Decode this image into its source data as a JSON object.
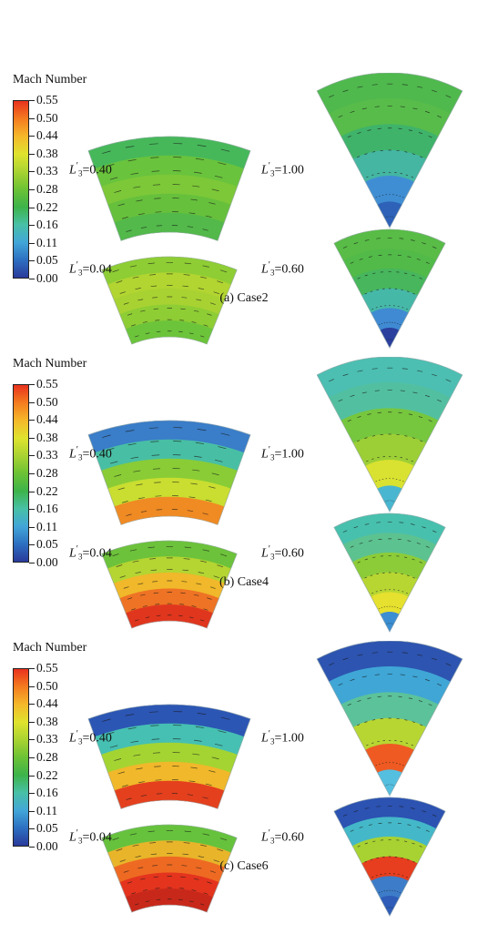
{
  "colorbar": {
    "title": "Mach Number",
    "ticks": [
      "0.55",
      "0.50",
      "0.44",
      "0.38",
      "0.33",
      "0.28",
      "0.22",
      "0.16",
      "0.11",
      "0.05",
      "0.00"
    ],
    "colors": [
      "#e8321e",
      "#f47c1f",
      "#f5b82a",
      "#dfe32e",
      "#a9d332",
      "#6cc235",
      "#3db34a",
      "#48c0a6",
      "#42a6d8",
      "#2d6fc1",
      "#2a3a9a"
    ]
  },
  "length_symbol": "L",
  "length_sub": "3",
  "length_sup": "′",
  "panels": [
    {
      "caption": "(a) Case2",
      "labels": [
        "=0.40",
        "=1.00",
        "=0.04",
        "=0.60"
      ],
      "fields": {
        "arc1": [
          "#46b85a",
          "#69c33c",
          "#7cc838",
          "#66c03c",
          "#52b94a"
        ],
        "arc2": [
          "#8ecd34",
          "#b2d531",
          "#a8d232",
          "#8ecd34",
          "#6cc43a"
        ],
        "sec1": [
          "#4fb94d",
          "#58bc4a",
          "#3fb36a",
          "#44b6a2",
          "#3f8ed4",
          "#2d62b8"
        ],
        "sec2": [
          "#58bc46",
          "#52ba48",
          "#47b65c",
          "#46b8a8",
          "#3f8ad2",
          "#2a3f9e"
        ]
      }
    },
    {
      "caption": "(b) Case4",
      "labels": [
        "=0.40",
        "=1.00",
        "=0.04",
        "=0.60"
      ],
      "fields": {
        "arc1": [
          "#3a7dc8",
          "#48bfa4",
          "#89cc36",
          "#c9de30",
          "#f08a23"
        ],
        "arc2": [
          "#6cc23a",
          "#b4d532",
          "#f0b82a",
          "#ee7324",
          "#e0361e"
        ],
        "sec1": [
          "#4cbfb2",
          "#52c0a0",
          "#76c63e",
          "#9ccf36",
          "#d9e230",
          "#48b6d0"
        ],
        "sec2": [
          "#48c0ae",
          "#5cc290",
          "#8ccc38",
          "#b8d632",
          "#e6e02e",
          "#3c8ed2"
        ]
      }
    },
    {
      "caption": "(c) Case6",
      "labels": [
        "=0.40",
        "=1.00",
        "=0.04",
        "=0.60"
      ],
      "fields": {
        "arc1": [
          "#2c56b4",
          "#46c0b2",
          "#a4d432",
          "#f0b82a",
          "#e4401e"
        ],
        "arc2": [
          "#66c23c",
          "#e8b42a",
          "#ee6a22",
          "#e4341e",
          "#c8281a"
        ],
        "sec1": [
          "#2d54b0",
          "#3fa6d6",
          "#5cc29a",
          "#b8d632",
          "#ef5a22",
          "#55bfe0"
        ],
        "sec2": [
          "#2c52b2",
          "#44b8c8",
          "#a8d232",
          "#e63e1e",
          "#3d7cc8",
          "#2e5cb8"
        ]
      }
    }
  ]
}
